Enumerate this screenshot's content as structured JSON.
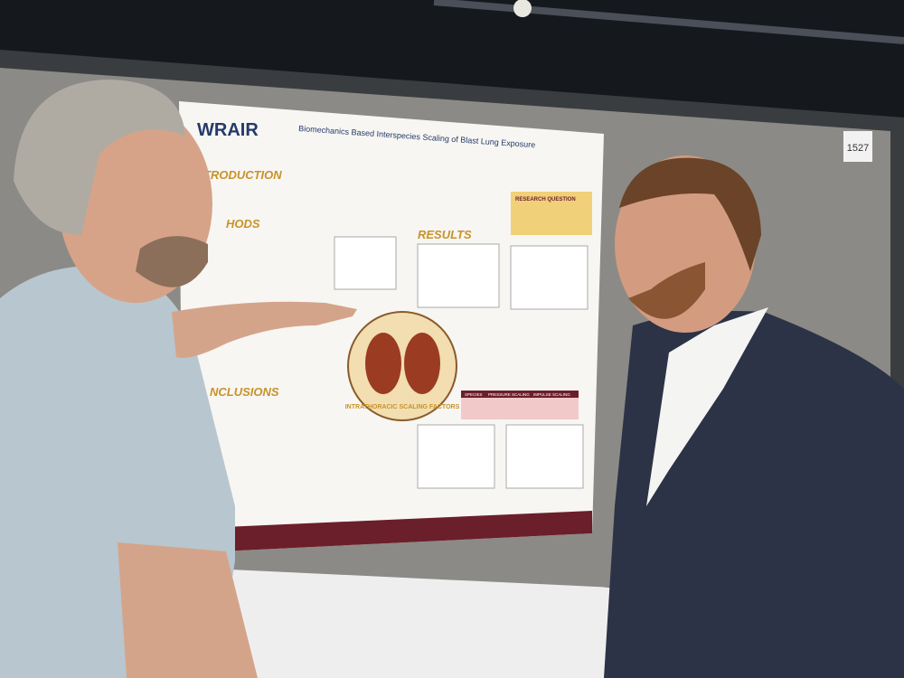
{
  "poster": {
    "logo": "WRAIR",
    "title": "Biomechanics Based Interspecies Scaling of Blast Lung Exposure",
    "sections": [
      "TRODUCTION",
      "HODS",
      "RESULTS",
      "NCLUSIONS"
    ],
    "research_question": "RESEARCH QUESTION",
    "figure_label": "INTRATHORACIC SCALING FACTORS",
    "table_header": [
      "SPECIES",
      "PRESSURE SCALING",
      "IMPULSE SCALING"
    ]
  },
  "booth_number": "1527"
}
